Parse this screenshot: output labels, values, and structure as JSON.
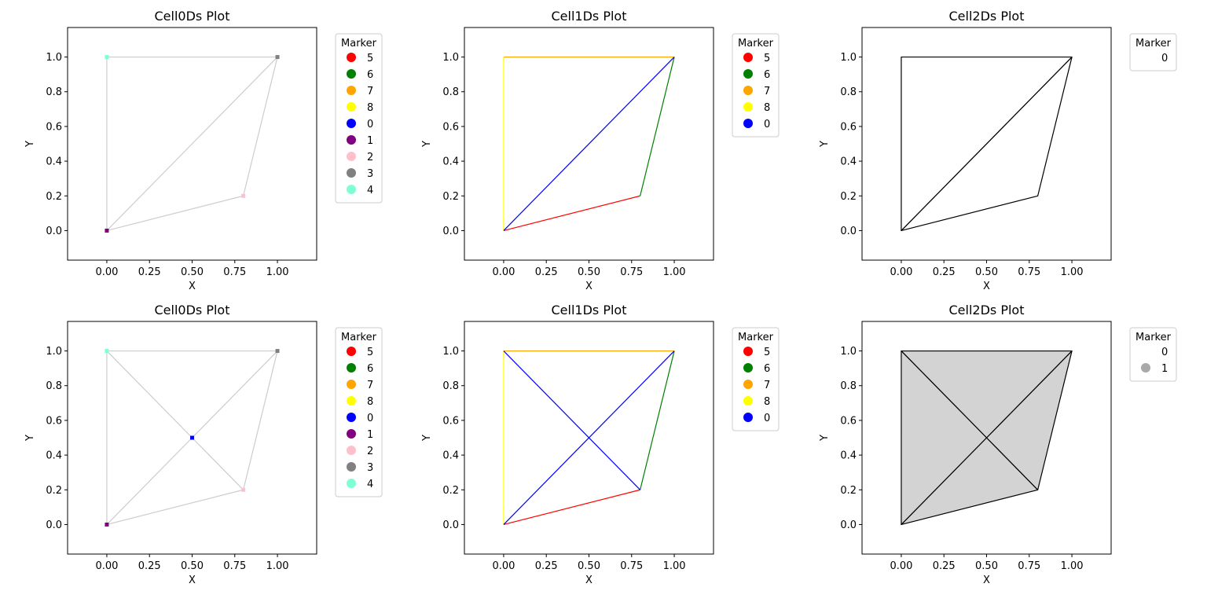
{
  "chart_data": [
    {
      "type": "scatter",
      "title": "Cell0Ds Plot",
      "xlabel": "X",
      "ylabel": "Y",
      "xlim": [
        -0.23,
        1.23
      ],
      "ylim": [
        -0.17,
        1.17
      ],
      "xticks": [
        "0.00",
        "0.25",
        "0.50",
        "0.75",
        "1.00"
      ],
      "yticks": [
        "0.0",
        "0.2",
        "0.4",
        "0.6",
        "0.8",
        "1.0"
      ],
      "legend_title": "Marker",
      "legend_position": "outside-top-right",
      "legend": [
        {
          "label": "5",
          "color": "#ff0000"
        },
        {
          "label": "6",
          "color": "#008000"
        },
        {
          "label": "7",
          "color": "#ffa500"
        },
        {
          "label": "8",
          "color": "#ffff00"
        },
        {
          "label": "0",
          "color": "#0000ff"
        },
        {
          "label": "1",
          "color": "#800080"
        },
        {
          "label": "2",
          "color": "#ffc0cb"
        },
        {
          "label": "3",
          "color": "#808080"
        },
        {
          "label": "4",
          "color": "#7fffd4"
        }
      ],
      "edges": [
        {
          "from": [
            0,
            0
          ],
          "to": [
            0.8,
            0.2
          ],
          "color": "#cccccc"
        },
        {
          "from": [
            0.8,
            0.2
          ],
          "to": [
            1,
            1
          ],
          "color": "#cccccc"
        },
        {
          "from": [
            1,
            1
          ],
          "to": [
            0,
            1
          ],
          "color": "#cccccc"
        },
        {
          "from": [
            0,
            1
          ],
          "to": [
            0,
            0
          ],
          "color": "#cccccc"
        },
        {
          "from": [
            0,
            0
          ],
          "to": [
            1,
            1
          ],
          "color": "#cccccc"
        }
      ],
      "points": [
        {
          "x": 0,
          "y": 0,
          "marker": "1",
          "color": "#800080"
        },
        {
          "x": 0.8,
          "y": 0.2,
          "marker": "2",
          "color": "#ffc0cb"
        },
        {
          "x": 1,
          "y": 1,
          "marker": "3",
          "color": "#808080"
        },
        {
          "x": 0,
          "y": 1,
          "marker": "4",
          "color": "#7fffd4"
        }
      ]
    },
    {
      "type": "line",
      "title": "Cell1Ds Plot",
      "xlabel": "X",
      "ylabel": "Y",
      "xlim": [
        -0.23,
        1.23
      ],
      "ylim": [
        -0.17,
        1.17
      ],
      "xticks": [
        "0.00",
        "0.25",
        "0.50",
        "0.75",
        "1.00"
      ],
      "yticks": [
        "0.0",
        "0.2",
        "0.4",
        "0.6",
        "0.8",
        "1.0"
      ],
      "legend_title": "Marker",
      "legend_position": "outside-top-right",
      "legend": [
        {
          "label": "5",
          "color": "#ff0000"
        },
        {
          "label": "6",
          "color": "#008000"
        },
        {
          "label": "7",
          "color": "#ffa500"
        },
        {
          "label": "8",
          "color": "#ffff00"
        },
        {
          "label": "0",
          "color": "#0000ff"
        }
      ],
      "edges": [
        {
          "from": [
            0,
            0
          ],
          "to": [
            0.8,
            0.2
          ],
          "color": "#ff0000"
        },
        {
          "from": [
            0.8,
            0.2
          ],
          "to": [
            1,
            1
          ],
          "color": "#008000"
        },
        {
          "from": [
            1,
            1
          ],
          "to": [
            0,
            1
          ],
          "color": "#ffa500"
        },
        {
          "from": [
            0,
            1
          ],
          "to": [
            0,
            0
          ],
          "color": "#ffff00"
        },
        {
          "from": [
            0,
            0
          ],
          "to": [
            1,
            1
          ],
          "color": "#0000ff"
        }
      ],
      "points": []
    },
    {
      "type": "polygon",
      "title": "Cell2Ds Plot",
      "xlabel": "X",
      "ylabel": "Y",
      "xlim": [
        -0.23,
        1.23
      ],
      "ylim": [
        -0.17,
        1.17
      ],
      "xticks": [
        "0.00",
        "0.25",
        "0.50",
        "0.75",
        "1.00"
      ],
      "yticks": [
        "0.0",
        "0.2",
        "0.4",
        "0.6",
        "0.8",
        "1.0"
      ],
      "legend_title": "Marker",
      "legend_position": "outside-top-right",
      "legend": [
        {
          "label": "0",
          "color": "#ffffff"
        }
      ],
      "polygons": [
        {
          "points": [
            [
              0,
              0
            ],
            [
              0.8,
              0.2
            ],
            [
              1,
              1
            ]
          ],
          "fill": "#ffffff",
          "stroke": "#000000"
        },
        {
          "points": [
            [
              0,
              0
            ],
            [
              1,
              1
            ],
            [
              0,
              1
            ]
          ],
          "fill": "#ffffff",
          "stroke": "#000000"
        }
      ]
    },
    {
      "type": "scatter",
      "title": "Cell0Ds Plot",
      "xlabel": "X",
      "ylabel": "Y",
      "xlim": [
        -0.23,
        1.23
      ],
      "ylim": [
        -0.17,
        1.17
      ],
      "xticks": [
        "0.00",
        "0.25",
        "0.50",
        "0.75",
        "1.00"
      ],
      "yticks": [
        "0.0",
        "0.2",
        "0.4",
        "0.6",
        "0.8",
        "1.0"
      ],
      "legend_title": "Marker",
      "legend_position": "outside-top-right",
      "legend": [
        {
          "label": "5",
          "color": "#ff0000"
        },
        {
          "label": "6",
          "color": "#008000"
        },
        {
          "label": "7",
          "color": "#ffa500"
        },
        {
          "label": "8",
          "color": "#ffff00"
        },
        {
          "label": "0",
          "color": "#0000ff"
        },
        {
          "label": "1",
          "color": "#800080"
        },
        {
          "label": "2",
          "color": "#ffc0cb"
        },
        {
          "label": "3",
          "color": "#808080"
        },
        {
          "label": "4",
          "color": "#7fffd4"
        }
      ],
      "edges": [
        {
          "from": [
            0,
            0
          ],
          "to": [
            0.8,
            0.2
          ],
          "color": "#cccccc"
        },
        {
          "from": [
            0.8,
            0.2
          ],
          "to": [
            1,
            1
          ],
          "color": "#cccccc"
        },
        {
          "from": [
            1,
            1
          ],
          "to": [
            0,
            1
          ],
          "color": "#cccccc"
        },
        {
          "from": [
            0,
            1
          ],
          "to": [
            0,
            0
          ],
          "color": "#cccccc"
        },
        {
          "from": [
            0,
            0
          ],
          "to": [
            1,
            1
          ],
          "color": "#cccccc"
        },
        {
          "from": [
            0,
            1
          ],
          "to": [
            0.8,
            0.2
          ],
          "color": "#cccccc"
        }
      ],
      "points": [
        {
          "x": 0,
          "y": 0,
          "marker": "1",
          "color": "#800080"
        },
        {
          "x": 0.8,
          "y": 0.2,
          "marker": "2",
          "color": "#ffc0cb"
        },
        {
          "x": 1,
          "y": 1,
          "marker": "3",
          "color": "#808080"
        },
        {
          "x": 0,
          "y": 1,
          "marker": "4",
          "color": "#7fffd4"
        },
        {
          "x": 0.5,
          "y": 0.5,
          "marker": "0",
          "color": "#0000ff"
        }
      ]
    },
    {
      "type": "line",
      "title": "Cell1Ds Plot",
      "xlabel": "X",
      "ylabel": "Y",
      "xlim": [
        -0.23,
        1.23
      ],
      "ylim": [
        -0.17,
        1.17
      ],
      "xticks": [
        "0.00",
        "0.25",
        "0.50",
        "0.75",
        "1.00"
      ],
      "yticks": [
        "0.0",
        "0.2",
        "0.4",
        "0.6",
        "0.8",
        "1.0"
      ],
      "legend_title": "Marker",
      "legend_position": "outside-top-right",
      "legend": [
        {
          "label": "5",
          "color": "#ff0000"
        },
        {
          "label": "6",
          "color": "#008000"
        },
        {
          "label": "7",
          "color": "#ffa500"
        },
        {
          "label": "8",
          "color": "#ffff00"
        },
        {
          "label": "0",
          "color": "#0000ff"
        }
      ],
      "edges": [
        {
          "from": [
            0,
            0
          ],
          "to": [
            0.8,
            0.2
          ],
          "color": "#ff0000"
        },
        {
          "from": [
            0.8,
            0.2
          ],
          "to": [
            1,
            1
          ],
          "color": "#008000"
        },
        {
          "from": [
            1,
            1
          ],
          "to": [
            0,
            1
          ],
          "color": "#ffa500"
        },
        {
          "from": [
            0,
            1
          ],
          "to": [
            0,
            0
          ],
          "color": "#ffff00"
        },
        {
          "from": [
            0,
            0
          ],
          "to": [
            1,
            1
          ],
          "color": "#0000ff"
        },
        {
          "from": [
            0,
            1
          ],
          "to": [
            0.8,
            0.2
          ],
          "color": "#0000ff"
        }
      ],
      "points": []
    },
    {
      "type": "polygon",
      "title": "Cell2Ds Plot",
      "xlabel": "X",
      "ylabel": "Y",
      "xlim": [
        -0.23,
        1.23
      ],
      "ylim": [
        -0.17,
        1.17
      ],
      "xticks": [
        "0.00",
        "0.25",
        "0.50",
        "0.75",
        "1.00"
      ],
      "yticks": [
        "0.0",
        "0.2",
        "0.4",
        "0.6",
        "0.8",
        "1.0"
      ],
      "legend_title": "Marker",
      "legend_position": "outside-top-right",
      "legend": [
        {
          "label": "0",
          "color": "#ffffff"
        },
        {
          "label": "1",
          "color": "#a9a9a9"
        }
      ],
      "polygons": [
        {
          "points": [
            [
              0,
              0
            ],
            [
              0.8,
              0.2
            ],
            [
              0.5,
              0.5
            ]
          ],
          "fill": "#d3d3d3",
          "stroke": "#000000"
        },
        {
          "points": [
            [
              0.8,
              0.2
            ],
            [
              1,
              1
            ],
            [
              0.5,
              0.5
            ]
          ],
          "fill": "#d3d3d3",
          "stroke": "#000000"
        },
        {
          "points": [
            [
              1,
              1
            ],
            [
              0,
              1
            ],
            [
              0.5,
              0.5
            ]
          ],
          "fill": "#d3d3d3",
          "stroke": "#000000"
        },
        {
          "points": [
            [
              0,
              1
            ],
            [
              0,
              0
            ],
            [
              0.5,
              0.5
            ]
          ],
          "fill": "#d3d3d3",
          "stroke": "#000000"
        }
      ]
    }
  ]
}
